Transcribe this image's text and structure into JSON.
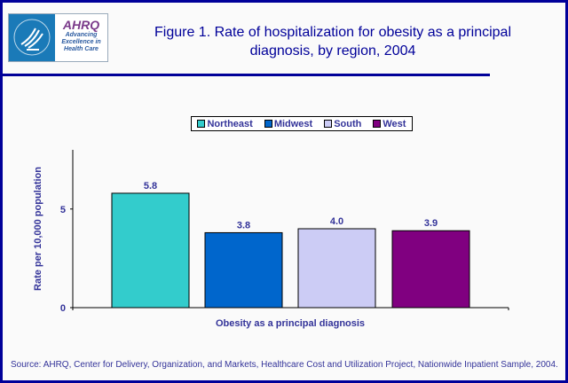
{
  "logo": {
    "agency_text": "AHRQ",
    "tagline": "Advancing Excellence in Health Care"
  },
  "header": {
    "title": "Figure 1. Rate of hospitalization for obesity as a principal diagnosis, by region, 2004"
  },
  "chart_data": {
    "type": "bar",
    "title": "Figure 1. Rate of hospitalization for obesity as a principal diagnosis, by region, 2004",
    "categories": [
      "Obesity as a principal diagnosis"
    ],
    "xlabel": "Obesity as a principal diagnosis",
    "ylabel": "Rate per 10,000 population",
    "ylim": [
      0,
      8
    ],
    "yticks": [
      0,
      5
    ],
    "grid": false,
    "legend_position": "top",
    "series": [
      {
        "name": "Northeast",
        "values": [
          5.8
        ],
        "label": "5.8",
        "color": "#33cccc"
      },
      {
        "name": "Midwest",
        "values": [
          3.8
        ],
        "label": "3.8",
        "color": "#0066cc"
      },
      {
        "name": "South",
        "values": [
          4.0
        ],
        "label": "4.0",
        "color": "#ccccf5"
      },
      {
        "name": "West",
        "values": [
          3.9
        ],
        "label": "3.9",
        "color": "#800080"
      }
    ]
  },
  "footer": {
    "source": "Source: AHRQ, Center for Delivery, Organization, and Markets, Healthcare Cost and Utilization Project, Nationwide Inpatient Sample, 2004."
  }
}
